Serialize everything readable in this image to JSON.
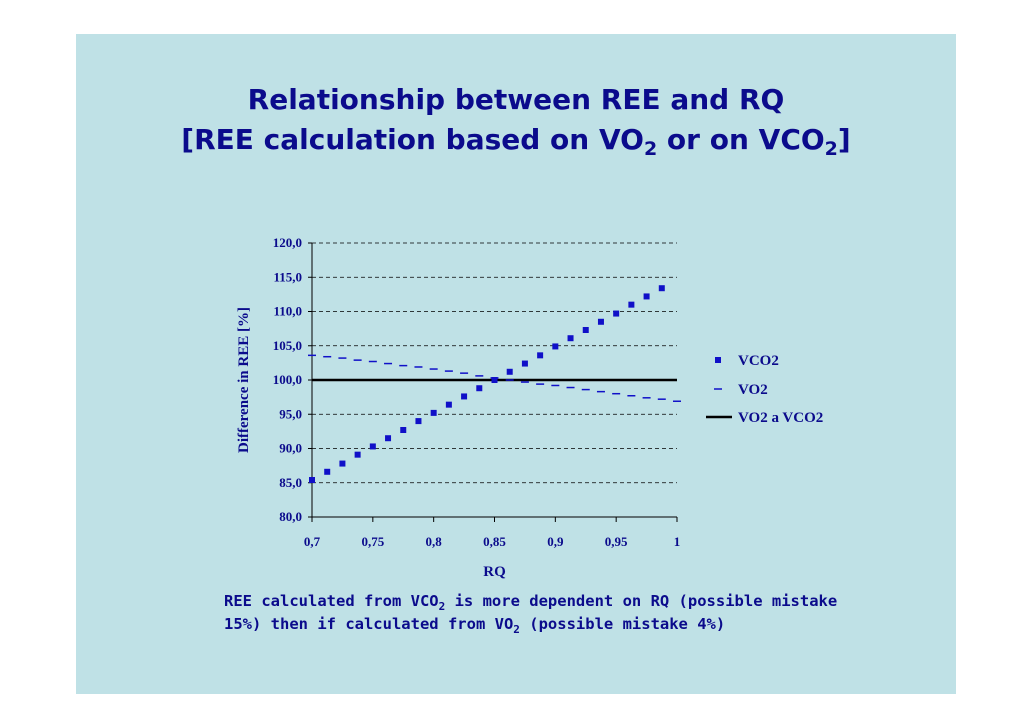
{
  "slide": {
    "title_line1": "Relationship between REE and RQ",
    "title_line2_a": "[REE calculation based on VO",
    "title_line2_sub1": "2",
    "title_line2_b": " or on VCO",
    "title_line2_sub2": "2",
    "title_line2_c": "]",
    "note_a": "REE calculated from VCO",
    "note_sub1": "2",
    "note_b": " is more dependent on RQ (possible mistake 15%) then if calculated from VO",
    "note_sub2": "2",
    "note_c": " (possible mistake 4%)"
  },
  "colors": {
    "slide_bg": "#bfe1e6",
    "text": "#0b0b8c",
    "series_vco2": "#1010c8",
    "series_vo2": "#1010c8",
    "series_ref": "#000000"
  },
  "chart_data": {
    "type": "scatter",
    "title": "",
    "xlabel": "RQ",
    "ylabel": "Difference in REE [%]",
    "xlim": [
      0.7,
      1.0
    ],
    "ylim": [
      80.0,
      120.0
    ],
    "x_ticks": [
      "0,7",
      "0,75",
      "0,8",
      "0,85",
      "0,9",
      "0,95",
      "1"
    ],
    "y_ticks": [
      "120,0",
      "115,0",
      "110,0",
      "105,0",
      "100,0",
      "95,0",
      "90,0",
      "85,0",
      "80,0"
    ],
    "grid": "horizontal dashed",
    "legend_position": "right",
    "series": [
      {
        "name": "VCO2",
        "marker": "square",
        "x": [
          0.7,
          0.7125,
          0.725,
          0.7375,
          0.75,
          0.7625,
          0.775,
          0.7875,
          0.8,
          0.8125,
          0.825,
          0.8375,
          0.85,
          0.8625,
          0.875,
          0.8875,
          0.9,
          0.9125,
          0.925,
          0.9375,
          0.95,
          0.9625,
          0.975,
          0.9875
        ],
        "y": [
          85.4,
          86.6,
          87.8,
          89.1,
          90.3,
          91.5,
          92.7,
          94.0,
          95.2,
          96.4,
          97.6,
          98.8,
          100.0,
          101.2,
          102.4,
          103.6,
          104.9,
          106.1,
          107.3,
          108.5,
          109.7,
          111.0,
          112.2,
          113.4
        ]
      },
      {
        "name": "VO2",
        "marker": "dash",
        "x": [
          0.7,
          0.7125,
          0.725,
          0.7375,
          0.75,
          0.7625,
          0.775,
          0.7875,
          0.8,
          0.8125,
          0.825,
          0.8375,
          0.85,
          0.8625,
          0.875,
          0.8875,
          0.9,
          0.9125,
          0.925,
          0.9375,
          0.95,
          0.9625,
          0.975,
          0.9875,
          1.0
        ],
        "y": [
          103.6,
          103.4,
          103.2,
          102.9,
          102.7,
          102.4,
          102.1,
          101.9,
          101.6,
          101.3,
          101.0,
          100.6,
          100.3,
          100.0,
          99.7,
          99.4,
          99.2,
          98.9,
          98.6,
          98.3,
          98.0,
          97.7,
          97.4,
          97.2,
          96.9
        ]
      },
      {
        "name": "VO2 a VCO2",
        "marker": "line",
        "x": [
          0.7,
          1.0
        ],
        "y": [
          100.0,
          100.0
        ]
      }
    ]
  }
}
